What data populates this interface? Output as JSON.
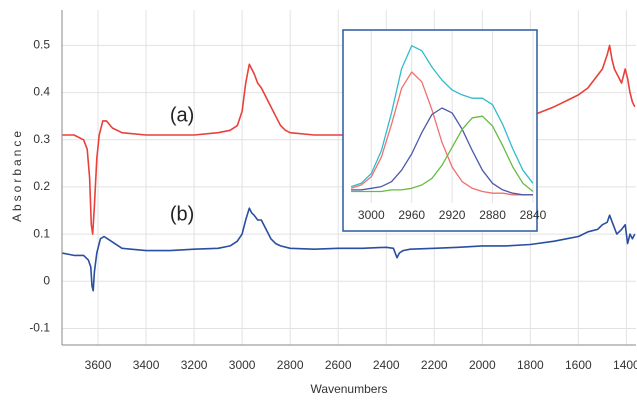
{
  "chart_data": [
    {
      "type": "line",
      "xlabel": "Wavenumbers",
      "ylabel": "Absorbance",
      "xlim": [
        3750,
        1360
      ],
      "ylim": [
        -0.135,
        0.575
      ],
      "xticks": [
        3600,
        3400,
        3200,
        3000,
        2800,
        2600,
        2400,
        2200,
        2000,
        1800,
        1600,
        1400
      ],
      "yticks": [
        -0.1,
        0,
        0.1,
        0.2,
        0.3,
        0.4,
        0.5
      ],
      "grid": true,
      "annotations": [
        {
          "text": "(a)",
          "x": 3250,
          "y": 0.35
        },
        {
          "text": "(b)",
          "x": 3250,
          "y": 0.14
        }
      ],
      "series": [
        {
          "color": "#e8413c",
          "x": [
            3750,
            3700,
            3660,
            3645,
            3635,
            3628,
            3622,
            3615,
            3605,
            3595,
            3580,
            3565,
            3540,
            3500,
            3400,
            3300,
            3200,
            3100,
            3050,
            3020,
            3000,
            2985,
            2970,
            2960,
            2950,
            2935,
            2920,
            2900,
            2880,
            2860,
            2840,
            2820,
            2800,
            2700,
            2600,
            2500,
            2400,
            2340,
            2200,
            2000,
            1800,
            1700,
            1640,
            1600,
            1560,
            1530,
            1500,
            1480,
            1470,
            1460,
            1450,
            1430,
            1420,
            1405,
            1395,
            1385,
            1375,
            1365
          ],
          "values": [
            0.31,
            0.31,
            0.3,
            0.28,
            0.22,
            0.12,
            0.1,
            0.16,
            0.26,
            0.31,
            0.34,
            0.34,
            0.325,
            0.315,
            0.31,
            0.31,
            0.31,
            0.315,
            0.32,
            0.33,
            0.36,
            0.42,
            0.46,
            0.45,
            0.44,
            0.42,
            0.41,
            0.39,
            0.37,
            0.35,
            0.33,
            0.32,
            0.315,
            0.31,
            0.31,
            0.31,
            0.31,
            0.31,
            0.32,
            0.33,
            0.35,
            0.37,
            0.385,
            0.395,
            0.41,
            0.43,
            0.45,
            0.48,
            0.5,
            0.47,
            0.45,
            0.43,
            0.42,
            0.45,
            0.43,
            0.4,
            0.38,
            0.37
          ]
        },
        {
          "color": "#2a4ea0",
          "x": [
            3750,
            3700,
            3660,
            3640,
            3630,
            3625,
            3620,
            3615,
            3605,
            3590,
            3575,
            3560,
            3530,
            3500,
            3400,
            3300,
            3200,
            3100,
            3050,
            3020,
            3000,
            2985,
            2970,
            2960,
            2950,
            2935,
            2920,
            2900,
            2880,
            2860,
            2840,
            2800,
            2700,
            2600,
            2500,
            2400,
            2370,
            2355,
            2345,
            2330,
            2300,
            2200,
            2100,
            2000,
            1900,
            1800,
            1700,
            1650,
            1600,
            1560,
            1520,
            1500,
            1480,
            1470,
            1455,
            1440,
            1420,
            1405,
            1395,
            1385,
            1375,
            1365
          ],
          "values": [
            0.06,
            0.055,
            0.055,
            0.045,
            0.03,
            -0.01,
            -0.02,
            0.02,
            0.06,
            0.09,
            0.095,
            0.09,
            0.08,
            0.07,
            0.065,
            0.065,
            0.068,
            0.07,
            0.075,
            0.085,
            0.1,
            0.13,
            0.155,
            0.145,
            0.14,
            0.13,
            0.13,
            0.11,
            0.09,
            0.08,
            0.075,
            0.07,
            0.068,
            0.07,
            0.07,
            0.072,
            0.07,
            0.05,
            0.06,
            0.065,
            0.068,
            0.07,
            0.072,
            0.075,
            0.075,
            0.078,
            0.085,
            0.09,
            0.095,
            0.105,
            0.11,
            0.12,
            0.125,
            0.14,
            0.12,
            0.1,
            0.11,
            0.12,
            0.08,
            0.1,
            0.09,
            0.1
          ]
        }
      ]
    },
    {
      "type": "line",
      "xlim": [
        3027,
        2837
      ],
      "ylim": [
        0,
        1.05
      ],
      "xticks": [
        3000,
        2960,
        2920,
        2880,
        2840
      ],
      "grid": true,
      "x": [
        3020,
        3010,
        3000,
        2990,
        2980,
        2970,
        2960,
        2950,
        2940,
        2930,
        2920,
        2910,
        2900,
        2890,
        2880,
        2870,
        2860,
        2850,
        2840
      ],
      "series": [
        {
          "color": "#f07070",
          "values": [
            0.09,
            0.11,
            0.16,
            0.28,
            0.48,
            0.7,
            0.8,
            0.74,
            0.57,
            0.37,
            0.22,
            0.13,
            0.09,
            0.07,
            0.06,
            0.06,
            0.05,
            0.05,
            0.05
          ]
        },
        {
          "color": "#4a5aa8",
          "values": [
            0.08,
            0.08,
            0.09,
            0.1,
            0.13,
            0.2,
            0.3,
            0.43,
            0.54,
            0.58,
            0.55,
            0.45,
            0.32,
            0.2,
            0.12,
            0.08,
            0.06,
            0.05,
            0.05
          ]
        },
        {
          "color": "#66bb44",
          "values": [
            0.07,
            0.07,
            0.07,
            0.07,
            0.08,
            0.08,
            0.09,
            0.11,
            0.15,
            0.23,
            0.34,
            0.45,
            0.52,
            0.53,
            0.47,
            0.35,
            0.22,
            0.12,
            0.07
          ]
        },
        {
          "color": "#33bbcc",
          "values": [
            0.1,
            0.12,
            0.18,
            0.32,
            0.55,
            0.82,
            0.96,
            0.93,
            0.83,
            0.75,
            0.69,
            0.66,
            0.64,
            0.64,
            0.6,
            0.48,
            0.33,
            0.2,
            0.12
          ]
        }
      ]
    }
  ]
}
